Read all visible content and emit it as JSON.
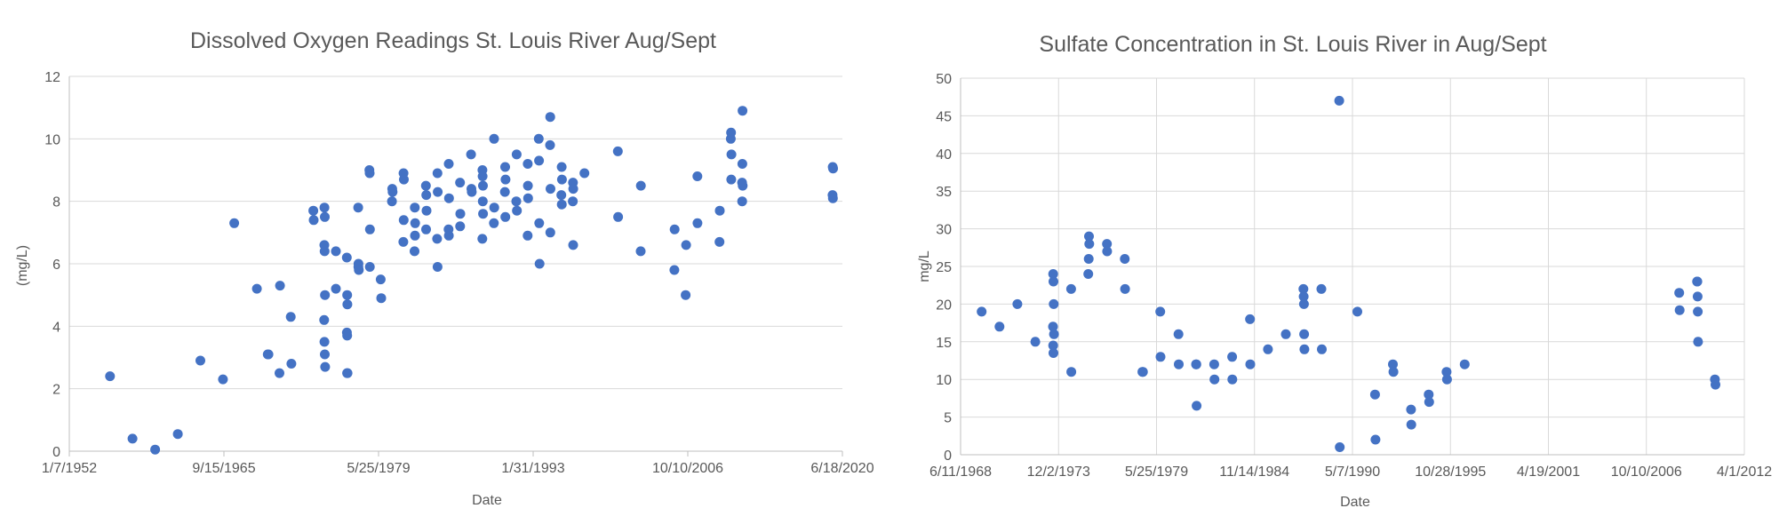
{
  "charts": [
    {
      "chart_data": {
        "type": "scatter",
        "title": "Dissolved Oxygen Readings St. Louis River Aug/Sept",
        "xlabel": "Date",
        "ylabel": "(mg/L)",
        "x_axis_type": "date",
        "xlim": [
          "1952-01-07",
          "2020-06-18"
        ],
        "ylim": [
          0,
          12
        ],
        "x_ticks": [
          "1952-01-07",
          "1965-09-15",
          "1979-05-25",
          "1993-01-31",
          "2006-10-10",
          "2020-06-18"
        ],
        "x_tick_labels": [
          "1/7/1952",
          "9/15/1965",
          "5/25/1979",
          "1/31/1993",
          "10/10/2006",
          "6/18/2020"
        ],
        "y_ticks": [
          0,
          2,
          4,
          6,
          8,
          10,
          12
        ],
        "y_tick_labels": [
          "0",
          "2",
          "4",
          "6",
          "8",
          "10",
          "12"
        ],
        "grid": "horizontal",
        "color": "#4472c4",
        "points": [
          [
            "1955-08-15",
            2.4
          ],
          [
            "1957-08-10",
            0.4
          ],
          [
            "1959-08-15",
            0.05
          ],
          [
            "1961-08-15",
            0.55
          ],
          [
            "1963-08-15",
            2.9
          ],
          [
            "1965-08-15",
            2.3
          ],
          [
            "1966-08-15",
            7.3
          ],
          [
            "1968-08-15",
            5.2
          ],
          [
            "1969-08-01",
            3.1
          ],
          [
            "1969-08-25",
            3.1
          ],
          [
            "1970-08-15",
            2.5
          ],
          [
            "1970-09-01",
            5.3
          ],
          [
            "1971-08-15",
            4.3
          ],
          [
            "1971-09-05",
            2.8
          ],
          [
            "1973-08-15",
            7.7
          ],
          [
            "1973-08-25",
            7.4
          ],
          [
            "1974-08-10",
            7.8
          ],
          [
            "1974-08-20",
            7.5
          ],
          [
            "1974-08-05",
            6.6
          ],
          [
            "1974-08-15",
            6.4
          ],
          [
            "1974-08-25",
            5.0
          ],
          [
            "1974-08-01",
            4.2
          ],
          [
            "1974-08-10",
            3.5
          ],
          [
            "1974-08-20",
            3.1
          ],
          [
            "1974-09-01",
            2.7
          ],
          [
            "1975-08-15",
            6.4
          ],
          [
            "1975-08-15",
            5.2
          ],
          [
            "1976-08-01",
            6.2
          ],
          [
            "1976-08-15",
            5.0
          ],
          [
            "1976-08-20",
            4.7
          ],
          [
            "1976-08-05",
            3.8
          ],
          [
            "1976-08-15",
            3.7
          ],
          [
            "1976-08-10",
            2.5
          ],
          [
            "1976-08-25",
            2.5
          ],
          [
            "1977-08-05",
            7.8
          ],
          [
            "1977-08-15",
            6.0
          ],
          [
            "1977-08-25",
            5.8
          ],
          [
            "1977-08-10",
            5.9
          ],
          [
            "1978-08-01",
            9.0
          ],
          [
            "1978-08-10",
            8.9
          ],
          [
            "1978-08-20",
            7.1
          ],
          [
            "1978-08-15",
            5.9
          ],
          [
            "1979-08-01",
            5.5
          ],
          [
            "1979-08-20",
            4.9
          ],
          [
            "1980-08-10",
            8.4
          ],
          [
            "1980-08-20",
            8.3
          ],
          [
            "1980-08-01",
            8.0
          ],
          [
            "1981-08-10",
            8.9
          ],
          [
            "1981-08-20",
            8.7
          ],
          [
            "1981-08-15",
            7.4
          ],
          [
            "1981-08-05",
            6.7
          ],
          [
            "1982-08-10",
            7.8
          ],
          [
            "1982-08-20",
            7.3
          ],
          [
            "1982-08-15",
            6.9
          ],
          [
            "1982-08-01",
            6.4
          ],
          [
            "1983-08-05",
            8.5
          ],
          [
            "1983-08-15",
            8.2
          ],
          [
            "1983-08-25",
            7.7
          ],
          [
            "1983-08-10",
            7.1
          ],
          [
            "1984-08-10",
            8.9
          ],
          [
            "1984-08-20",
            8.3
          ],
          [
            "1984-08-01",
            6.8
          ],
          [
            "1984-08-15",
            5.9
          ],
          [
            "1985-08-10",
            9.2
          ],
          [
            "1985-08-20",
            8.1
          ],
          [
            "1985-08-05",
            7.1
          ],
          [
            "1985-08-15",
            6.9
          ],
          [
            "1986-08-10",
            8.6
          ],
          [
            "1986-08-20",
            7.6
          ],
          [
            "1986-08-15",
            7.2
          ],
          [
            "1987-08-01",
            9.5
          ],
          [
            "1987-08-15",
            8.4
          ],
          [
            "1987-08-25",
            8.3
          ],
          [
            "1988-08-05",
            9.0
          ],
          [
            "1988-08-10",
            8.8
          ],
          [
            "1988-08-20",
            8.5
          ],
          [
            "1988-08-15",
            8.0
          ],
          [
            "1988-08-25",
            7.6
          ],
          [
            "1988-08-01",
            6.8
          ],
          [
            "1989-08-15",
            10.0
          ],
          [
            "1989-08-20",
            7.8
          ],
          [
            "1989-08-10",
            7.3
          ],
          [
            "1990-08-10",
            9.1
          ],
          [
            "1990-08-20",
            8.7
          ],
          [
            "1990-08-01",
            8.3
          ],
          [
            "1990-08-15",
            7.5
          ],
          [
            "1991-08-15",
            9.5
          ],
          [
            "1991-08-05",
            8.0
          ],
          [
            "1991-08-25",
            7.7
          ],
          [
            "1992-08-10",
            9.2
          ],
          [
            "1992-08-15",
            8.5
          ],
          [
            "1992-08-20",
            8.1
          ],
          [
            "1992-08-05",
            6.9
          ],
          [
            "1993-08-01",
            10.0
          ],
          [
            "1993-08-10",
            9.3
          ],
          [
            "1993-08-15",
            7.3
          ],
          [
            "1993-08-25",
            6.0
          ],
          [
            "1994-08-05",
            10.7
          ],
          [
            "1994-08-01",
            9.8
          ],
          [
            "1994-08-15",
            8.4
          ],
          [
            "1994-08-10",
            7.0
          ],
          [
            "1995-08-10",
            9.1
          ],
          [
            "1995-08-20",
            8.7
          ],
          [
            "1995-08-01",
            8.2
          ],
          [
            "1995-08-15",
            7.9
          ],
          [
            "1996-08-10",
            8.6
          ],
          [
            "1996-08-20",
            8.4
          ],
          [
            "1996-08-05",
            8.0
          ],
          [
            "1996-08-15",
            6.6
          ],
          [
            "1997-08-15",
            8.9
          ],
          [
            "2000-08-01",
            9.6
          ],
          [
            "2000-08-10",
            7.5
          ],
          [
            "2002-08-15",
            8.5
          ],
          [
            "2002-08-10",
            6.4
          ],
          [
            "2005-08-10",
            7.1
          ],
          [
            "2005-08-01",
            5.8
          ],
          [
            "2006-08-15",
            6.6
          ],
          [
            "2006-08-01",
            5.0
          ],
          [
            "2007-08-15",
            8.8
          ],
          [
            "2007-08-20",
            7.3
          ],
          [
            "2009-08-10",
            7.7
          ],
          [
            "2009-08-01",
            6.7
          ],
          [
            "2010-08-10",
            10.2
          ],
          [
            "2010-08-01",
            10.0
          ],
          [
            "2010-08-20",
            9.5
          ],
          [
            "2010-08-15",
            8.7
          ],
          [
            "2011-08-15",
            10.9
          ],
          [
            "2011-08-10",
            9.2
          ],
          [
            "2011-08-01",
            8.6
          ],
          [
            "2011-08-20",
            8.5
          ],
          [
            "2011-08-05",
            8.0
          ],
          [
            "2019-08-10",
            9.1
          ],
          [
            "2019-08-20",
            9.05
          ],
          [
            "2019-08-05",
            8.2
          ],
          [
            "2019-08-15",
            8.1
          ]
        ]
      }
    },
    {
      "chart_data": {
        "type": "scatter",
        "title": "Sulfate Concentration in St. Louis River in Aug/Sept",
        "xlabel": "Date",
        "ylabel": "mg/L",
        "x_axis_type": "date",
        "xlim": [
          "1968-06-11",
          "2012-04-01"
        ],
        "ylim": [
          0,
          50
        ],
        "x_ticks": [
          "1968-06-11",
          "1973-12-02",
          "1979-05-25",
          "1984-11-14",
          "1990-05-07",
          "1995-10-28",
          "2001-04-19",
          "2006-10-10",
          "2012-04-01"
        ],
        "x_tick_labels": [
          "6/11/1968",
          "12/2/1973",
          "5/25/1979",
          "11/14/1984",
          "5/7/1990",
          "10/28/1995",
          "4/19/2001",
          "10/10/2006",
          "4/1/2012"
        ],
        "y_ticks": [
          0,
          5,
          10,
          15,
          20,
          25,
          30,
          35,
          40,
          45,
          50
        ],
        "y_tick_labels": [
          "0",
          "5",
          "10",
          "15",
          "20",
          "25",
          "30",
          "35",
          "40",
          "45",
          "50"
        ],
        "grid": "both",
        "color": "#4472c4",
        "points": [
          [
            "1969-08-15",
            19
          ],
          [
            "1970-08-15",
            17
          ],
          [
            "1971-08-15",
            20
          ],
          [
            "1972-08-15",
            15
          ],
          [
            "1973-08-15",
            24
          ],
          [
            "1973-08-20",
            23
          ],
          [
            "1973-08-25",
            20
          ],
          [
            "1973-08-10",
            17
          ],
          [
            "1973-08-30",
            16
          ],
          [
            "1973-08-15",
            14.5
          ],
          [
            "1973-08-20",
            13.5
          ],
          [
            "1974-08-15",
            22
          ],
          [
            "1974-08-20",
            11
          ],
          [
            "1975-08-15",
            29
          ],
          [
            "1975-08-20",
            28
          ],
          [
            "1975-08-10",
            26
          ],
          [
            "1975-08-01",
            24
          ],
          [
            "1976-08-15",
            28
          ],
          [
            "1976-08-20",
            27
          ],
          [
            "1977-08-15",
            26
          ],
          [
            "1977-08-20",
            22
          ],
          [
            "1978-08-10",
            11
          ],
          [
            "1978-08-20",
            11
          ],
          [
            "1979-08-10",
            19
          ],
          [
            "1979-08-15",
            13
          ],
          [
            "1980-08-15",
            16
          ],
          [
            "1980-08-20",
            12
          ],
          [
            "1981-08-10",
            12
          ],
          [
            "1981-08-15",
            12
          ],
          [
            "1981-08-20",
            6.5
          ],
          [
            "1982-08-15",
            12
          ],
          [
            "1982-08-20",
            10
          ],
          [
            "1983-08-15",
            13
          ],
          [
            "1983-08-20",
            10
          ],
          [
            "1984-08-15",
            18
          ],
          [
            "1984-08-20",
            12
          ],
          [
            "1985-08-15",
            14
          ],
          [
            "1986-08-15",
            16
          ],
          [
            "1987-08-10",
            22
          ],
          [
            "1987-08-15",
            21
          ],
          [
            "1987-08-20",
            20
          ],
          [
            "1987-08-25",
            16
          ],
          [
            "1987-08-30",
            14
          ],
          [
            "1988-08-10",
            22
          ],
          [
            "1988-08-20",
            14
          ],
          [
            "1989-08-10",
            47
          ],
          [
            "1989-08-20",
            1
          ],
          [
            "1990-08-15",
            19
          ],
          [
            "1991-08-10",
            8
          ],
          [
            "1991-08-20",
            2
          ],
          [
            "1992-08-10",
            12
          ],
          [
            "1992-08-20",
            11
          ],
          [
            "1993-08-15",
            6
          ],
          [
            "1993-08-20",
            4
          ],
          [
            "1994-08-10",
            8
          ],
          [
            "1994-08-20",
            7
          ],
          [
            "1995-08-10",
            11
          ],
          [
            "1995-08-20",
            10
          ],
          [
            "1996-08-15",
            12
          ],
          [
            "2008-08-10",
            21.5
          ],
          [
            "2008-08-20",
            19.2
          ],
          [
            "2009-08-10",
            23
          ],
          [
            "2009-08-15",
            23
          ],
          [
            "2009-08-20",
            21
          ],
          [
            "2009-08-25",
            19
          ],
          [
            "2009-08-30",
            15
          ],
          [
            "2010-08-10",
            10
          ],
          [
            "2010-08-20",
            9.3
          ]
        ]
      }
    }
  ]
}
